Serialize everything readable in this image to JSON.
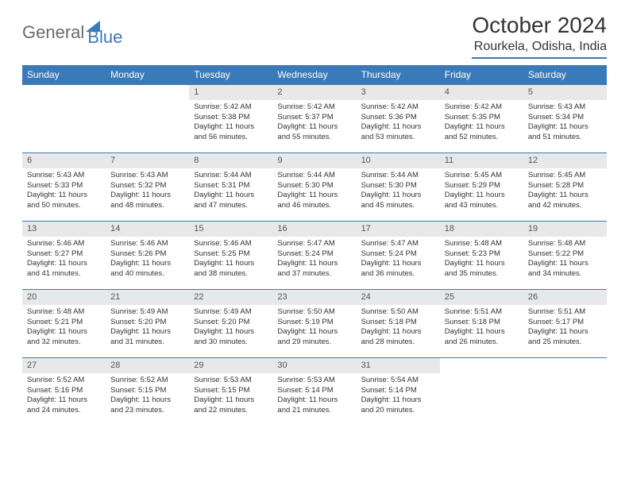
{
  "brand": {
    "part1": "General",
    "part2": "Blue"
  },
  "title": "October 2024",
  "location": "Rourkela, Odisha, India",
  "colors": {
    "accent": "#3a7ab8",
    "header_text": "#ffffff",
    "daynum_bg": "#e8e8e8",
    "text": "#333333",
    "logo_gray": "#6b6b6b"
  },
  "weekdays": [
    "Sunday",
    "Monday",
    "Tuesday",
    "Wednesday",
    "Thursday",
    "Friday",
    "Saturday"
  ],
  "weeks": [
    [
      {
        "day": "",
        "empty": true
      },
      {
        "day": "",
        "empty": true
      },
      {
        "day": "1",
        "sunrise": "Sunrise: 5:42 AM",
        "sunset": "Sunset: 5:38 PM",
        "daylight": "Daylight: 11 hours and 56 minutes."
      },
      {
        "day": "2",
        "sunrise": "Sunrise: 5:42 AM",
        "sunset": "Sunset: 5:37 PM",
        "daylight": "Daylight: 11 hours and 55 minutes."
      },
      {
        "day": "3",
        "sunrise": "Sunrise: 5:42 AM",
        "sunset": "Sunset: 5:36 PM",
        "daylight": "Daylight: 11 hours and 53 minutes."
      },
      {
        "day": "4",
        "sunrise": "Sunrise: 5:42 AM",
        "sunset": "Sunset: 5:35 PM",
        "daylight": "Daylight: 11 hours and 52 minutes."
      },
      {
        "day": "5",
        "sunrise": "Sunrise: 5:43 AM",
        "sunset": "Sunset: 5:34 PM",
        "daylight": "Daylight: 11 hours and 51 minutes."
      }
    ],
    [
      {
        "day": "6",
        "sunrise": "Sunrise: 5:43 AM",
        "sunset": "Sunset: 5:33 PM",
        "daylight": "Daylight: 11 hours and 50 minutes."
      },
      {
        "day": "7",
        "sunrise": "Sunrise: 5:43 AM",
        "sunset": "Sunset: 5:32 PM",
        "daylight": "Daylight: 11 hours and 48 minutes."
      },
      {
        "day": "8",
        "sunrise": "Sunrise: 5:44 AM",
        "sunset": "Sunset: 5:31 PM",
        "daylight": "Daylight: 11 hours and 47 minutes."
      },
      {
        "day": "9",
        "sunrise": "Sunrise: 5:44 AM",
        "sunset": "Sunset: 5:30 PM",
        "daylight": "Daylight: 11 hours and 46 minutes."
      },
      {
        "day": "10",
        "sunrise": "Sunrise: 5:44 AM",
        "sunset": "Sunset: 5:30 PM",
        "daylight": "Daylight: 11 hours and 45 minutes."
      },
      {
        "day": "11",
        "sunrise": "Sunrise: 5:45 AM",
        "sunset": "Sunset: 5:29 PM",
        "daylight": "Daylight: 11 hours and 43 minutes."
      },
      {
        "day": "12",
        "sunrise": "Sunrise: 5:45 AM",
        "sunset": "Sunset: 5:28 PM",
        "daylight": "Daylight: 11 hours and 42 minutes."
      }
    ],
    [
      {
        "day": "13",
        "sunrise": "Sunrise: 5:46 AM",
        "sunset": "Sunset: 5:27 PM",
        "daylight": "Daylight: 11 hours and 41 minutes."
      },
      {
        "day": "14",
        "sunrise": "Sunrise: 5:46 AM",
        "sunset": "Sunset: 5:26 PM",
        "daylight": "Daylight: 11 hours and 40 minutes."
      },
      {
        "day": "15",
        "sunrise": "Sunrise: 5:46 AM",
        "sunset": "Sunset: 5:25 PM",
        "daylight": "Daylight: 11 hours and 38 minutes."
      },
      {
        "day": "16",
        "sunrise": "Sunrise: 5:47 AM",
        "sunset": "Sunset: 5:24 PM",
        "daylight": "Daylight: 11 hours and 37 minutes."
      },
      {
        "day": "17",
        "sunrise": "Sunrise: 5:47 AM",
        "sunset": "Sunset: 5:24 PM",
        "daylight": "Daylight: 11 hours and 36 minutes."
      },
      {
        "day": "18",
        "sunrise": "Sunrise: 5:48 AM",
        "sunset": "Sunset: 5:23 PM",
        "daylight": "Daylight: 11 hours and 35 minutes."
      },
      {
        "day": "19",
        "sunrise": "Sunrise: 5:48 AM",
        "sunset": "Sunset: 5:22 PM",
        "daylight": "Daylight: 11 hours and 34 minutes."
      }
    ],
    [
      {
        "day": "20",
        "sunrise": "Sunrise: 5:48 AM",
        "sunset": "Sunset: 5:21 PM",
        "daylight": "Daylight: 11 hours and 32 minutes."
      },
      {
        "day": "21",
        "sunrise": "Sunrise: 5:49 AM",
        "sunset": "Sunset: 5:20 PM",
        "daylight": "Daylight: 11 hours and 31 minutes."
      },
      {
        "day": "22",
        "sunrise": "Sunrise: 5:49 AM",
        "sunset": "Sunset: 5:20 PM",
        "daylight": "Daylight: 11 hours and 30 minutes."
      },
      {
        "day": "23",
        "sunrise": "Sunrise: 5:50 AM",
        "sunset": "Sunset: 5:19 PM",
        "daylight": "Daylight: 11 hours and 29 minutes."
      },
      {
        "day": "24",
        "sunrise": "Sunrise: 5:50 AM",
        "sunset": "Sunset: 5:18 PM",
        "daylight": "Daylight: 11 hours and 28 minutes."
      },
      {
        "day": "25",
        "sunrise": "Sunrise: 5:51 AM",
        "sunset": "Sunset: 5:18 PM",
        "daylight": "Daylight: 11 hours and 26 minutes."
      },
      {
        "day": "26",
        "sunrise": "Sunrise: 5:51 AM",
        "sunset": "Sunset: 5:17 PM",
        "daylight": "Daylight: 11 hours and 25 minutes."
      }
    ],
    [
      {
        "day": "27",
        "sunrise": "Sunrise: 5:52 AM",
        "sunset": "Sunset: 5:16 PM",
        "daylight": "Daylight: 11 hours and 24 minutes."
      },
      {
        "day": "28",
        "sunrise": "Sunrise: 5:52 AM",
        "sunset": "Sunset: 5:15 PM",
        "daylight": "Daylight: 11 hours and 23 minutes."
      },
      {
        "day": "29",
        "sunrise": "Sunrise: 5:53 AM",
        "sunset": "Sunset: 5:15 PM",
        "daylight": "Daylight: 11 hours and 22 minutes."
      },
      {
        "day": "30",
        "sunrise": "Sunrise: 5:53 AM",
        "sunset": "Sunset: 5:14 PM",
        "daylight": "Daylight: 11 hours and 21 minutes."
      },
      {
        "day": "31",
        "sunrise": "Sunrise: 5:54 AM",
        "sunset": "Sunset: 5:14 PM",
        "daylight": "Daylight: 11 hours and 20 minutes."
      },
      {
        "day": "",
        "empty": true
      },
      {
        "day": "",
        "empty": true
      }
    ]
  ]
}
